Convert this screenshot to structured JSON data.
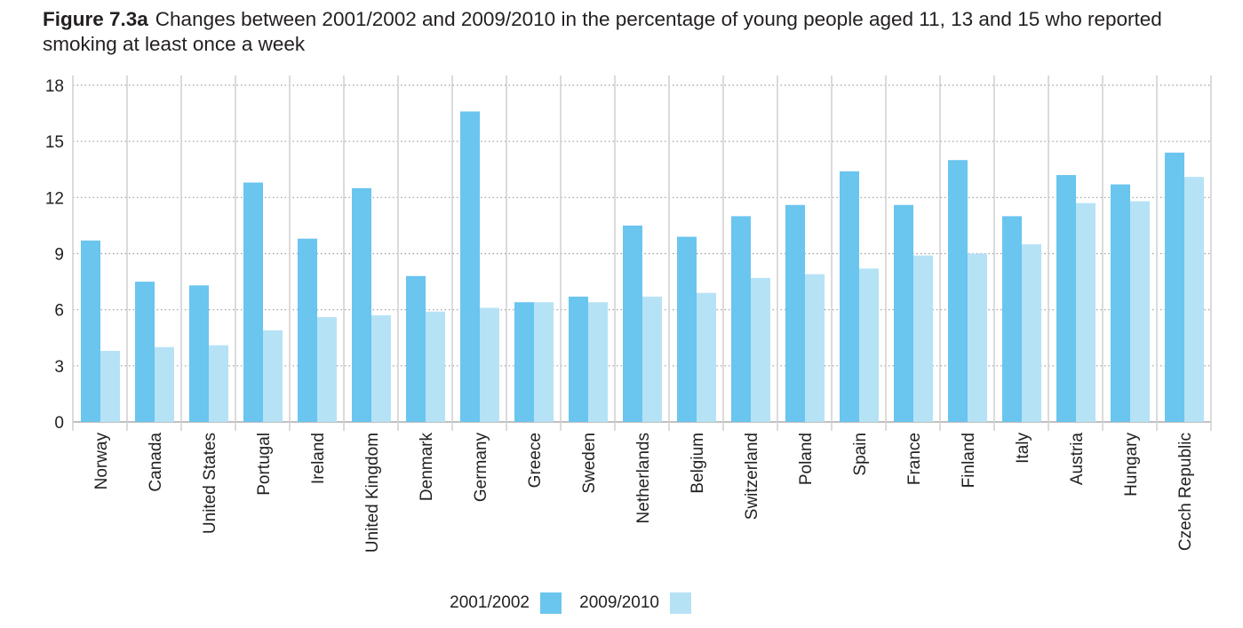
{
  "title": {
    "figure_label": "Figure 7.3a",
    "text": "Changes between 2001/2002 and 2009/2010 in the percentage of young people aged 11, 13 and 15 who reported smoking at least once a week"
  },
  "colors": {
    "series_2001": "#6ac5ef",
    "series_2009": "#b6e2f6",
    "grid": "#9a9a9a",
    "separator": "#cfcfcf",
    "text": "#231f20"
  },
  "chart_data": {
    "type": "bar",
    "ylim": [
      0,
      18
    ],
    "yticks": [
      0,
      3,
      6,
      9,
      12,
      15,
      18
    ],
    "grid": true,
    "legend_position": "bottom-center",
    "categories": [
      "Norway",
      "Canada",
      "United States",
      "Portugal",
      "Ireland",
      "United Kingdom",
      "Denmark",
      "Germany",
      "Greece",
      "Sweden",
      "Netherlands",
      "Belgium",
      "Switzerland",
      "Poland",
      "Spain",
      "France",
      "Finland",
      "Italy",
      "Austria",
      "Hungary",
      "Czech Republic"
    ],
    "series": [
      {
        "name": "2001/2002",
        "values": [
          9.7,
          7.5,
          7.3,
          12.8,
          9.8,
          12.5,
          7.8,
          16.6,
          6.4,
          6.7,
          10.5,
          9.9,
          11.0,
          11.6,
          13.4,
          11.6,
          14.0,
          11.0,
          13.2,
          12.7,
          14.4
        ]
      },
      {
        "name": "2009/2010",
        "values": [
          3.8,
          4.0,
          4.1,
          4.9,
          5.6,
          5.7,
          5.9,
          6.1,
          6.4,
          6.4,
          6.7,
          6.9,
          7.7,
          7.9,
          8.2,
          8.9,
          9.0,
          9.5,
          11.7,
          11.8,
          13.1
        ]
      }
    ]
  }
}
